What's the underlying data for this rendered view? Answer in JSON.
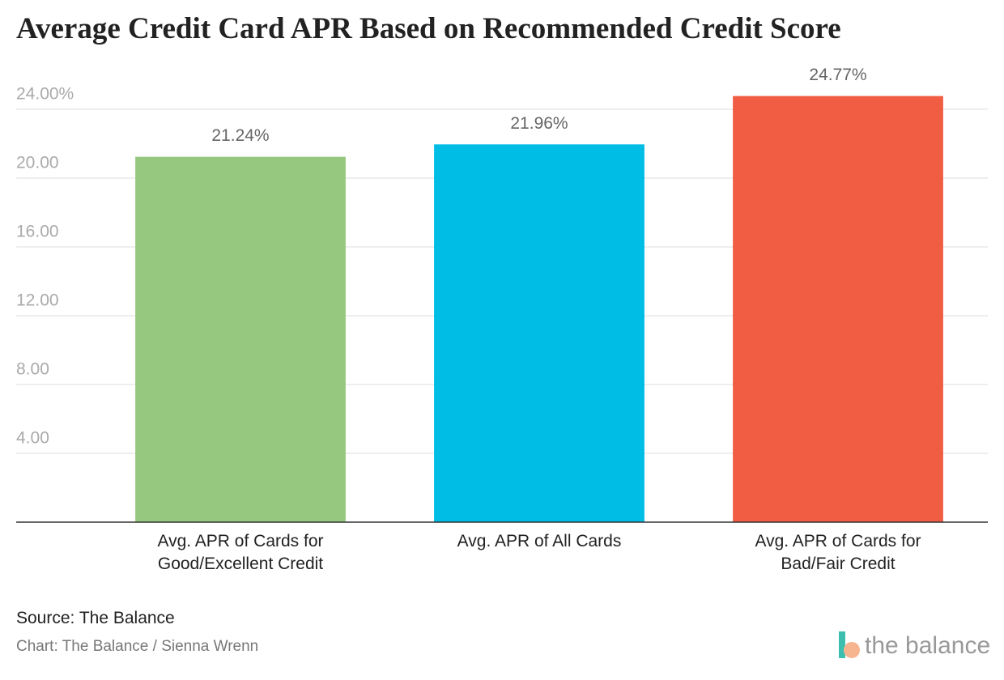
{
  "chart_data": {
    "type": "bar",
    "title": "Average Credit Card APR Based on Recommended Credit Score",
    "categories": [
      "Avg. APR of Cards for Good/Excellent Credit",
      "Avg. APR of All Cards",
      "Avg. APR of Cards for Bad/Fair Credit"
    ],
    "values": [
      21.24,
      21.96,
      24.77
    ],
    "value_labels": [
      "21.24%",
      "21.96%",
      "24.77%"
    ],
    "colors": [
      "#96c87f",
      "#00bde5",
      "#f05d43"
    ],
    "ylim": [
      0,
      25
    ],
    "yticks": [
      {
        "value": 4,
        "label": "4.00"
      },
      {
        "value": 8,
        "label": "8.00"
      },
      {
        "value": 12,
        "label": "12.00"
      },
      {
        "value": 16,
        "label": "16.00"
      },
      {
        "value": 20,
        "label": "20.00"
      },
      {
        "value": 24,
        "label": "24.00%"
      }
    ],
    "grid": true,
    "source": "Source: The Balance",
    "credit": "Chart: The Balance / Sienna Wrenn",
    "logo": "the balance"
  }
}
